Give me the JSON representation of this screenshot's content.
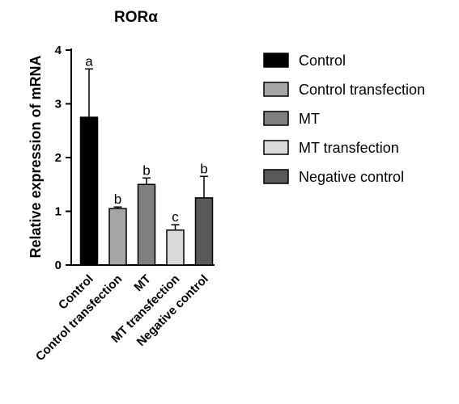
{
  "chart_data": {
    "type": "bar",
    "title": "RORα",
    "ylabel": "Relative expression of mRNA",
    "xlabel": "",
    "ylim": [
      0,
      4
    ],
    "yticks": [
      0,
      1,
      2,
      3,
      4
    ],
    "categories": [
      "Control",
      "Control transfection",
      "MT",
      "MT transfection",
      "Negative control"
    ],
    "values": [
      2.75,
      1.05,
      1.5,
      0.65,
      1.25
    ],
    "errors": [
      0.9,
      0.03,
      0.12,
      0.1,
      0.4
    ],
    "significance": [
      "a",
      "b",
      "b",
      "c",
      "b"
    ],
    "colors": [
      "#000000",
      "#a6a6a6",
      "#7f7f7f",
      "#d9d9d9",
      "#595959"
    ],
    "legend": {
      "position": "right",
      "entries": [
        "Control",
        "Control transfection",
        "MT",
        "MT transfection",
        "Negative control"
      ]
    },
    "grid": false
  }
}
